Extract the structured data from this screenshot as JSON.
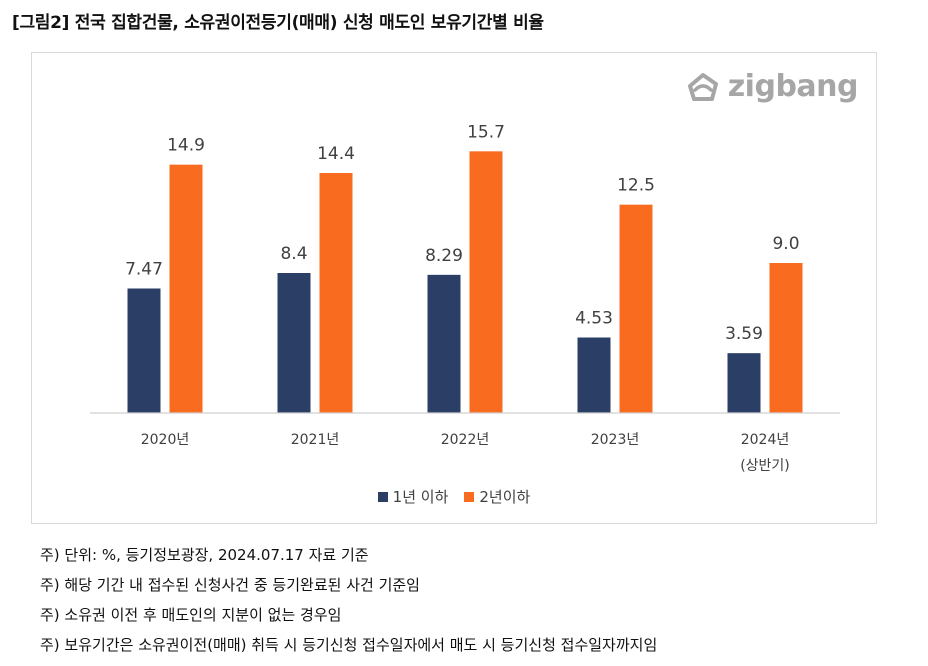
{
  "title": "[그림2] 전국 집합건물, 소유권이전등기(매매) 신청 매도인 보유기간별 비율",
  "logo_text": "zigbang",
  "chart_data": {
    "type": "bar",
    "categories": [
      "2020년",
      "2021년",
      "2022년",
      "2023년",
      "2024년 (상반기)"
    ],
    "category_lines": [
      [
        "2020년"
      ],
      [
        "2021년"
      ],
      [
        "2022년"
      ],
      [
        "2023년"
      ],
      [
        "2024년",
        "(상반기)"
      ]
    ],
    "series": [
      {
        "name": "1년 이하",
        "values": [
          7.47,
          8.4,
          8.29,
          4.53,
          3.59
        ],
        "labels": [
          "7.47",
          "8.4",
          "8.29",
          "4.53",
          "3.59"
        ],
        "color": "#2b3f66"
      },
      {
        "name": "2년이하",
        "values": [
          14.9,
          14.4,
          15.7,
          12.5,
          9.0
        ],
        "labels": [
          "14.9",
          "14.4",
          "15.7",
          "12.5",
          "9.0"
        ],
        "color": "#f96b1f"
      }
    ],
    "ylim": [
      0,
      18
    ],
    "grid": false,
    "legend_position": "bottom"
  },
  "notes": [
    "주) 단위: %, 등기정보광장, 2024.07.17 자료 기준",
    "주) 해당 기간 내 접수된 신청사건 중 등기완료된 사건 기준임",
    "주) 소유권 이전 후 매도인의 지분이 없는 경우임",
    "주) 보유기간은 소유권이전(매매) 취득 시 등기신청 접수일자에서 매도 시 등기신청 접수일자까지임"
  ]
}
